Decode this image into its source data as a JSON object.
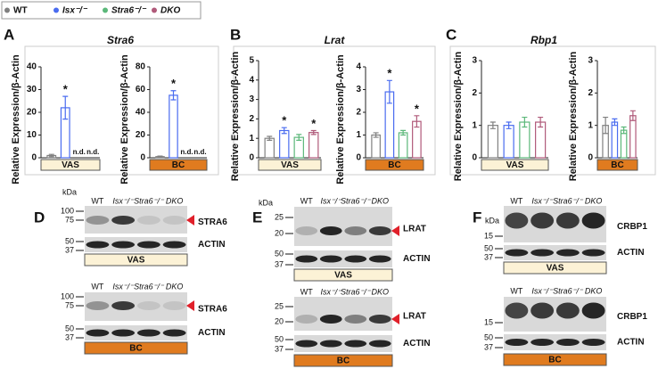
{
  "legend": {
    "labels": [
      "WT",
      "Isx⁻/⁻",
      "Stra6⁻/⁻",
      "DKO"
    ],
    "colors": [
      "#808080",
      "#4a6cf0",
      "#5cb87a",
      "#b05a7a"
    ]
  },
  "panels": [
    "A",
    "B",
    "C"
  ],
  "chart_data": [
    {
      "type": "bar",
      "title": "Stra6",
      "ylabel": "Relative Expression/β-Actin",
      "group_label": "VAS",
      "group_color": "#fcf2d6",
      "values": [
        1,
        22,
        null,
        null
      ],
      "errors": [
        0.5,
        5,
        null,
        null
      ],
      "annotations": [
        null,
        "*",
        "n.d.",
        "n.d."
      ],
      "ylim": [
        0,
        40
      ],
      "yticks": [
        0,
        10,
        20,
        30,
        40
      ]
    },
    {
      "type": "bar",
      "ylabel": "Relative Expression/β-Actin",
      "group_label": "BC",
      "group_color": "#e07b1f",
      "values": [
        1,
        55,
        null,
        null
      ],
      "errors": [
        0.5,
        4,
        null,
        null
      ],
      "annotations": [
        null,
        "*",
        "n.d.",
        "n.d."
      ],
      "ylim": [
        0,
        80
      ],
      "yticks": [
        0,
        20,
        40,
        60,
        80
      ]
    },
    {
      "type": "bar",
      "title": "Lrat",
      "ylabel": "Relative Expression/β-Actin",
      "group_label": "VAS",
      "group_color": "#fcf2d6",
      "values": [
        1.0,
        1.4,
        1.05,
        1.3
      ],
      "errors": [
        0.1,
        0.15,
        0.15,
        0.1
      ],
      "annotations": [
        null,
        "*",
        null,
        "*"
      ],
      "ylim": [
        0,
        5
      ],
      "yticks": [
        0,
        1,
        2,
        3,
        4,
        5
      ]
    },
    {
      "type": "bar",
      "ylabel": "Relative Expression/β-Actin",
      "group_label": "BC",
      "group_color": "#e07b1f",
      "values": [
        1.0,
        2.9,
        1.1,
        1.6
      ],
      "errors": [
        0.1,
        0.5,
        0.1,
        0.25
      ],
      "annotations": [
        null,
        "*",
        null,
        "*"
      ],
      "ylim": [
        0,
        4
      ],
      "yticks": [
        0,
        1,
        2,
        3,
        4
      ]
    },
    {
      "type": "bar",
      "title": "Rbp1",
      "ylabel": "Relative Expression/β-Actin",
      "group_label": "VAS",
      "group_color": "#fcf2d6",
      "values": [
        1.0,
        1.0,
        1.1,
        1.1
      ],
      "errors": [
        0.1,
        0.1,
        0.15,
        0.15
      ],
      "annotations": [
        null,
        null,
        null,
        null
      ],
      "ylim": [
        0,
        3
      ],
      "yticks": [
        0,
        1,
        2,
        3
      ]
    },
    {
      "type": "bar",
      "ylabel": "Relative Expression/β-Actin",
      "group_label": "BC",
      "group_color": "#e07b1f",
      "values": [
        1.0,
        1.1,
        0.85,
        1.3
      ],
      "errors": [
        0.25,
        0.1,
        0.1,
        0.15
      ],
      "annotations": [
        null,
        null,
        null,
        null
      ],
      "ylim": [
        0,
        3
      ],
      "yticks": [
        0,
        1,
        2,
        3
      ]
    }
  ],
  "blots": [
    {
      "letter": "D",
      "sets": [
        {
          "kda": "kDa",
          "lanes": [
            "WT",
            "Isx⁻/⁻",
            "Stra6⁻/⁻",
            "DKO"
          ],
          "rows": [
            {
              "markers": [
                100,
                75
              ],
              "protein": "STRA6"
            },
            {
              "markers": [
                50,
                37
              ],
              "protein": "ACTIN"
            }
          ],
          "group": "VAS"
        },
        {
          "lanes": [
            "WT",
            "Isx⁻/⁻",
            "Stra6⁻/⁻",
            "DKO"
          ],
          "rows": [
            {
              "markers": [
                100,
                75
              ],
              "protein": "STRA6"
            },
            {
              "markers": [
                50,
                37
              ],
              "protein": "ACTIN"
            }
          ],
          "group": "BC"
        }
      ]
    },
    {
      "letter": "E",
      "sets": [
        {
          "kda": "kDa",
          "lanes": [
            "WT",
            "Isx⁻/⁻",
            "Stra6⁻/⁻",
            "DKO"
          ],
          "rows": [
            {
              "markers": [
                25,
                20
              ],
              "protein": "LRAT"
            },
            {
              "markers": [
                50,
                37
              ],
              "protein": "ACTIN"
            }
          ],
          "group": "VAS"
        },
        {
          "lanes": [
            "WT",
            "Isx⁻/⁻",
            "Stra6⁻/⁻",
            "DKO"
          ],
          "rows": [
            {
              "markers": [
                25,
                20
              ],
              "protein": "LRAT"
            },
            {
              "markers": [
                50,
                37
              ],
              "protein": "ACTIN"
            }
          ],
          "group": "BC"
        }
      ]
    },
    {
      "letter": "F",
      "sets": [
        {
          "kda": "kDa",
          "lanes": [
            "WT",
            "Isx⁻/⁻",
            "Stra6⁻/⁻",
            "DKO"
          ],
          "rows": [
            {
              "markers": [
                15
              ],
              "protein": "CRBP1"
            },
            {
              "markers": [
                50,
                37
              ],
              "protein": "ACTIN"
            }
          ],
          "group": "VAS"
        },
        {
          "lanes": [
            "WT",
            "Isx⁻/⁻",
            "Stra6⁻/⁻",
            "DKO"
          ],
          "rows": [
            {
              "markers": [
                15
              ],
              "protein": "CRBP1"
            },
            {
              "markers": [
                50,
                37
              ],
              "protein": "ACTIN"
            }
          ],
          "group": "BC"
        }
      ]
    }
  ]
}
